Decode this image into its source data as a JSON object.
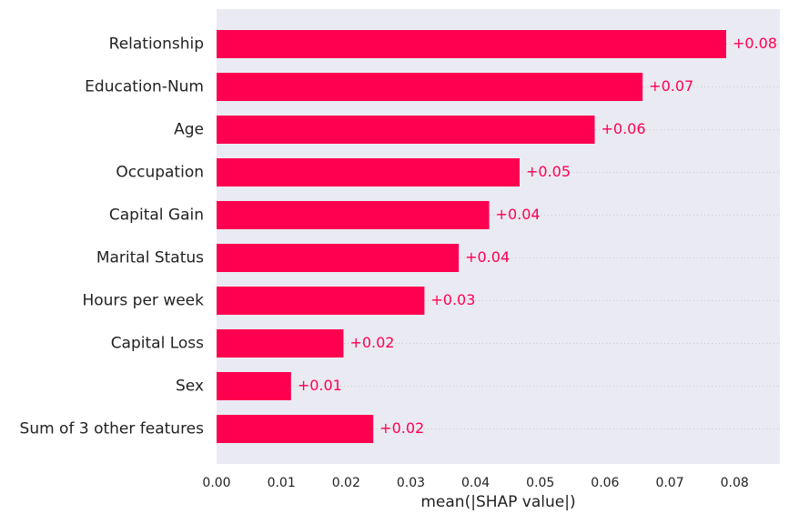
{
  "chart_data": {
    "type": "bar",
    "orientation": "horizontal",
    "categories": [
      "Relationship",
      "Education-Num",
      "Age",
      "Occupation",
      "Capital Gain",
      "Marital Status",
      "Hours per week",
      "Capital Loss",
      "Sex",
      "Sum of 3 other features"
    ],
    "values": [
      0.0787,
      0.0658,
      0.0584,
      0.0468,
      0.0421,
      0.0374,
      0.0321,
      0.0196,
      0.0115,
      0.0242
    ],
    "value_labels": [
      "+0.08",
      "+0.07",
      "+0.06",
      "+0.05",
      "+0.04",
      "+0.04",
      "+0.03",
      "+0.02",
      "+0.01",
      "+0.02"
    ],
    "xlabel": "mean(|SHAP value|)",
    "ylabel": "",
    "title": "",
    "xlim": [
      0,
      0.087
    ],
    "xticks": [
      0,
      0.01,
      0.02,
      0.03,
      0.04,
      0.05,
      0.06,
      0.07,
      0.08
    ],
    "xtick_labels": [
      "0.00",
      "0.01",
      "0.02",
      "0.03",
      "0.04",
      "0.05",
      "0.06",
      "0.07",
      "0.08"
    ],
    "grid": "horizontal dotted row guides",
    "legend": "none",
    "colors": {
      "bar": "#ff0051",
      "value_label": "#ff0051",
      "plot_background": "#eaeaf2",
      "text": "#222222",
      "grid": "#c8c8d0"
    }
  }
}
